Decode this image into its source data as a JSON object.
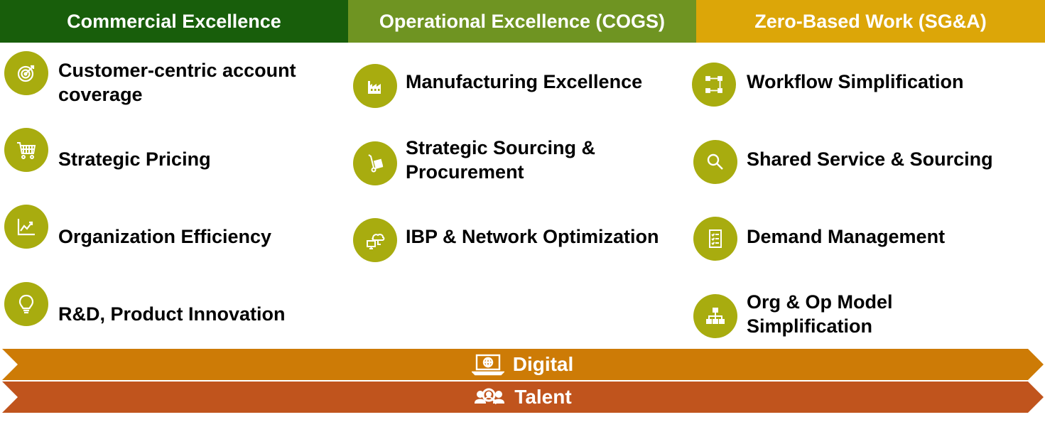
{
  "colors": {
    "commercial_header": "#185e0b",
    "operational_header": "#6f9422",
    "zbw_header": "#dca608",
    "badge": "#a8ac0f",
    "digital_band": "#cd7b06",
    "talent_band": "#c0541d"
  },
  "headers": {
    "commercial": "Commercial Excellence",
    "operational": "Operational Excellence (COGS)",
    "zbw": "Zero-Based Work (SG&A)"
  },
  "commercial_items": [
    {
      "label": "Customer-centric account\ncoverage",
      "icon": "target-icon"
    },
    {
      "label": "Strategic Pricing",
      "icon": "cart-icon"
    },
    {
      "label": "Organization Efficiency",
      "icon": "line-chart-icon"
    },
    {
      "label": "R&D, Product Innovation",
      "icon": "lightbulb-icon"
    }
  ],
  "operational_items": [
    {
      "label": "Manufacturing Excellence",
      "icon": "factory-icon"
    },
    {
      "label": "Strategic Sourcing &\nProcurement",
      "icon": "hand-truck-icon"
    },
    {
      "label": "IBP & Network Optimization",
      "icon": "cloud-network-icon"
    }
  ],
  "zbw_items": [
    {
      "label": "Workflow Simplification",
      "icon": "workflow-icon"
    },
    {
      "label": "Shared Service & Sourcing",
      "icon": "magnifier-icon"
    },
    {
      "label": "Demand Management",
      "icon": "checklist-icon"
    },
    {
      "label": "Org & Op Model\nSimplification",
      "icon": "org-chart-icon"
    }
  ],
  "bands": {
    "digital": {
      "label": "Digital",
      "icon": "laptop-globe-icon"
    },
    "talent": {
      "label": "Talent",
      "icon": "people-search-icon"
    }
  }
}
